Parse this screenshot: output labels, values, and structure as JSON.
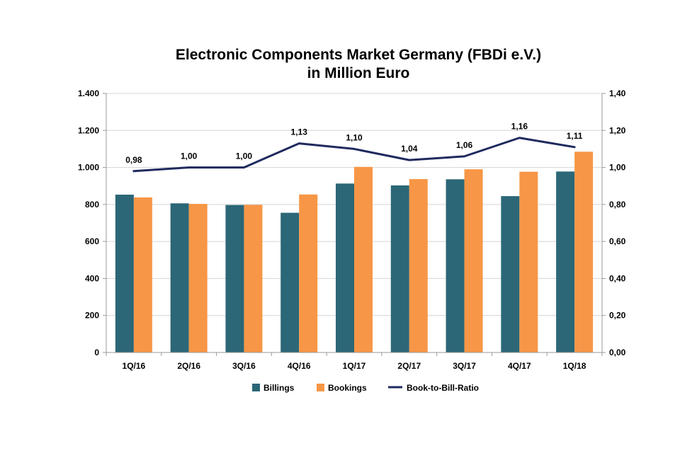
{
  "chart_data": {
    "type": "bar",
    "title": [
      "Electronic Components Market Germany (FBDi e.V.)",
      "in Million Euro"
    ],
    "categories": [
      "1Q/16",
      "2Q/16",
      "3Q/16",
      "4Q/16",
      "1Q/17",
      "2Q/17",
      "3Q/17",
      "4Q/17",
      "1Q/18"
    ],
    "series": [
      {
        "name": "Billings",
        "type": "bar",
        "axis": "left",
        "color": "#2b6777",
        "values": [
          853,
          806,
          797,
          755,
          913,
          903,
          936,
          845,
          978
        ]
      },
      {
        "name": "Bookings",
        "type": "bar",
        "axis": "left",
        "color": "#f79646",
        "values": [
          838,
          803,
          798,
          854,
          1003,
          937,
          990,
          977,
          1085
        ]
      },
      {
        "name": "Book-to-Bill-Ratio",
        "type": "line",
        "axis": "right",
        "color": "#1f2a5e",
        "values": [
          0.98,
          1.0,
          1.0,
          1.13,
          1.1,
          1.04,
          1.06,
          1.16,
          1.11
        ],
        "labels": [
          "0,98",
          "1,00",
          "1,00",
          "1,13",
          "1,10",
          "1,04",
          "1,06",
          "1,16",
          "1,11"
        ]
      }
    ],
    "y_left": {
      "ylim": [
        0,
        1400
      ],
      "ticks": [
        0,
        200,
        400,
        600,
        800,
        1000,
        1200,
        1400
      ],
      "tick_labels": [
        "0",
        "200",
        "400",
        "600",
        "800",
        "1.000",
        "1.200",
        "1.400"
      ]
    },
    "y_right": {
      "ylim": [
        0,
        1.4
      ],
      "ticks": [
        0,
        0.2,
        0.4,
        0.6,
        0.8,
        1.0,
        1.2,
        1.4
      ],
      "tick_labels": [
        "0,00",
        "0,20",
        "0,40",
        "0,60",
        "0,80",
        "1,00",
        "1,20",
        "1,40"
      ]
    },
    "grid": true,
    "legend": "bottom-center",
    "xlabel": "",
    "ylabel": ""
  }
}
